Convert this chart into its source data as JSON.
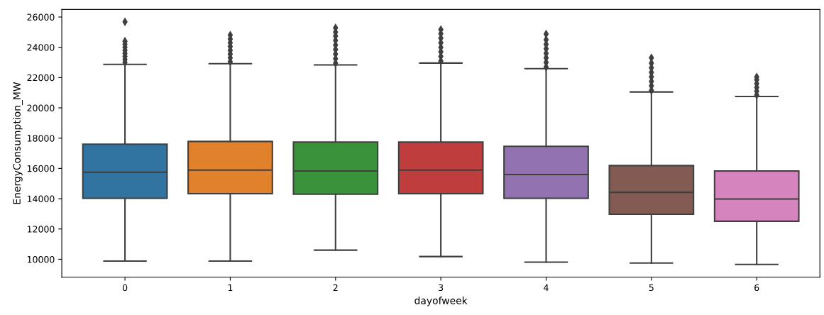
{
  "chart_data": {
    "type": "box",
    "xlabel": "dayofweek",
    "ylabel": "EnergyConsumption_MW",
    "categories": [
      "0",
      "1",
      "2",
      "3",
      "4",
      "5",
      "6"
    ],
    "colors": [
      "#3274a1",
      "#e1812c",
      "#3a923a",
      "#c03d3e",
      "#9372b2",
      "#845b53",
      "#d684bd"
    ],
    "boxes": [
      {
        "low": 9880,
        "q1": 14030,
        "median": 15750,
        "q3": 17600,
        "high": 22870,
        "outliers": [
          23000,
          23200,
          23400,
          23600,
          23800,
          24000,
          24200,
          24400,
          25680
        ]
      },
      {
        "low": 9880,
        "q1": 14330,
        "median": 15890,
        "q3": 17780,
        "high": 22920,
        "outliers": [
          23050,
          23300,
          23550,
          23800,
          24050,
          24300,
          24550,
          24800
        ]
      },
      {
        "low": 10600,
        "q1": 14300,
        "median": 15830,
        "q3": 17740,
        "high": 22840,
        "outliers": [
          22950,
          23250,
          23550,
          23850,
          24150,
          24450,
          24750,
          25000,
          25290
        ]
      },
      {
        "low": 10180,
        "q1": 14330,
        "median": 15890,
        "q3": 17740,
        "high": 22960,
        "outliers": [
          23100,
          23400,
          23700,
          24000,
          24300,
          24600,
          24900,
          25170
        ]
      },
      {
        "low": 9810,
        "q1": 14030,
        "median": 15600,
        "q3": 17460,
        "high": 22590,
        "outliers": [
          22700,
          23000,
          23300,
          23600,
          23900,
          24200,
          24500,
          24870
        ]
      },
      {
        "low": 9750,
        "q1": 12970,
        "median": 14420,
        "q3": 16190,
        "high": 21050,
        "outliers": [
          21150,
          21450,
          21750,
          22050,
          22350,
          22650,
          22950,
          23310
        ]
      },
      {
        "low": 9660,
        "q1": 12510,
        "median": 13980,
        "q3": 15830,
        "high": 20750,
        "outliers": [
          20850,
          21100,
          21350,
          21600,
          21850,
          22040
        ]
      }
    ],
    "ylim": [
      8815,
      26500
    ],
    "yticks": [
      10000,
      12000,
      14000,
      16000,
      18000,
      20000,
      22000,
      24000,
      26000
    ],
    "grid": false
  }
}
